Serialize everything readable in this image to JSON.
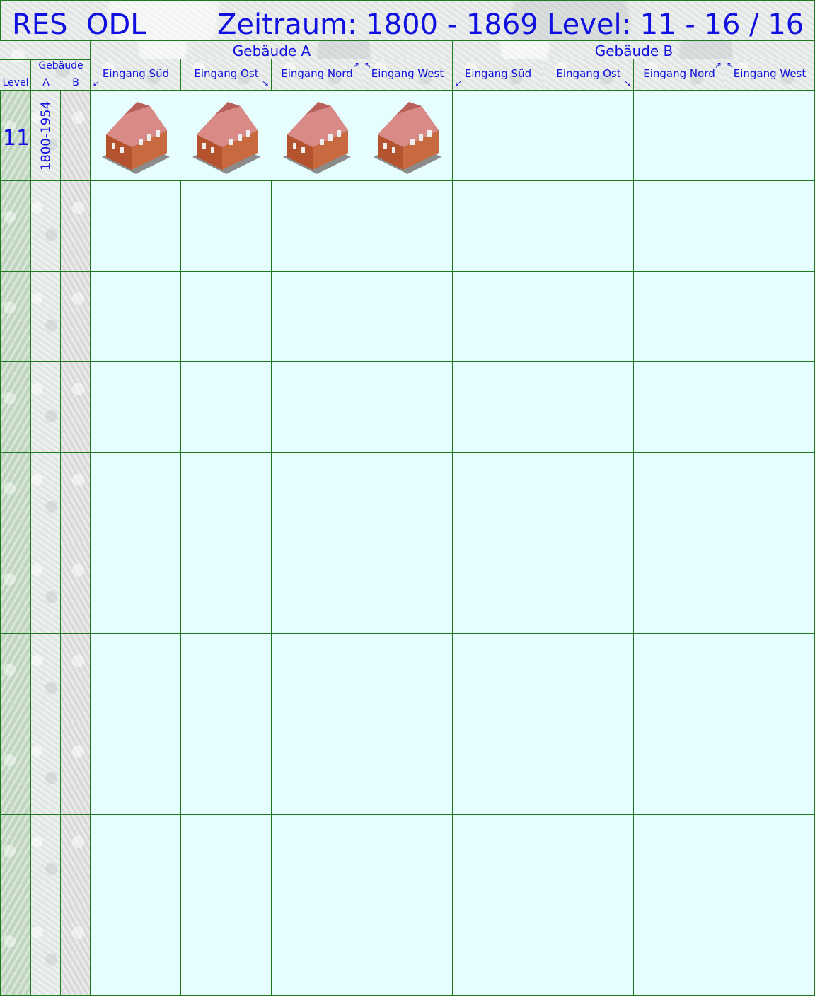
{
  "header": {
    "zone_code": "RES",
    "region": "ODL",
    "period": "Zeitraum: 1800 - 1869",
    "level": "Level: 11 - 16 / 16"
  },
  "groups": [
    {
      "label": "Gebäude A"
    },
    {
      "label": "Gebäude B"
    }
  ],
  "left_header": {
    "level": "Level",
    "gebaeude": "Gebäude",
    "a": "A",
    "b": "B"
  },
  "entrances": [
    {
      "label": "Eingang Süd",
      "arrow": "↙"
    },
    {
      "label": "Eingang Ost",
      "arrow": "↘"
    },
    {
      "label": "Eingang Nord",
      "arrow": "↗"
    },
    {
      "label": "Eingang West",
      "arrow": "↖"
    },
    {
      "label": "Eingang Süd",
      "arrow": "↙"
    },
    {
      "label": "Eingang Ost",
      "arrow": "↘"
    },
    {
      "label": "Eingang Nord",
      "arrow": "↗"
    },
    {
      "label": "Eingang West",
      "arrow": "↖"
    }
  ],
  "rows": [
    {
      "level": "11",
      "years": "1800-1954"
    }
  ],
  "colors": {
    "text": "#1010e0",
    "grid": "#1f7a1f",
    "cell": "#e6fefe"
  }
}
